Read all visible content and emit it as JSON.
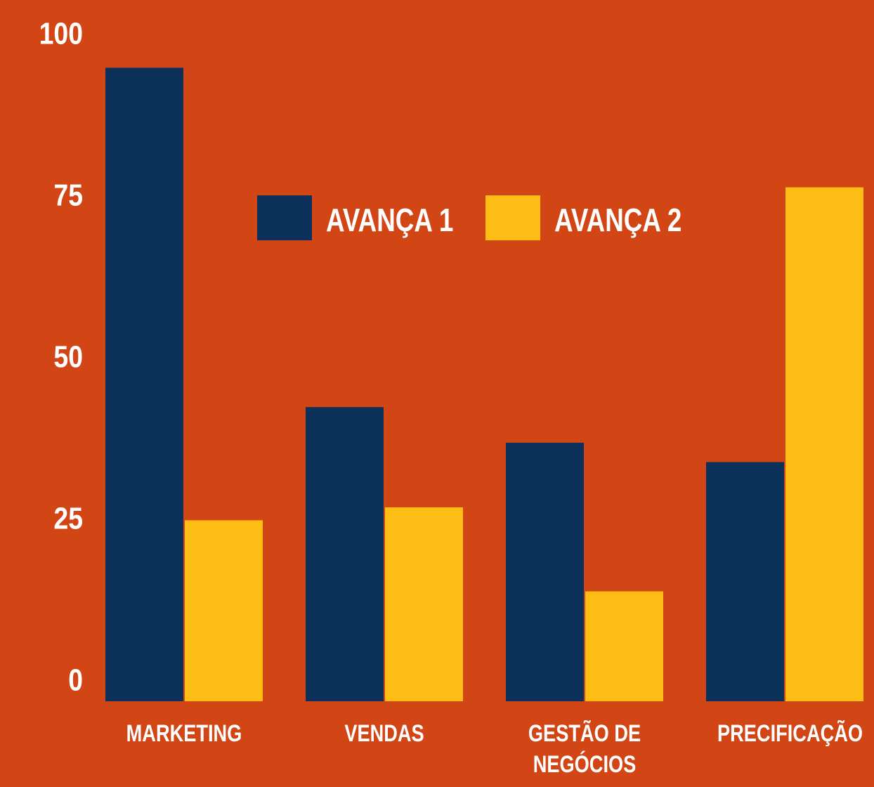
{
  "chart_data": {
    "type": "bar",
    "categories": [
      "MARKETING",
      "VENDAS",
      "GESTÃO DE NEGÓCIOS",
      "PRECIFICAÇÃO"
    ],
    "series": [
      {
        "name": "AVANÇA 1",
        "color": "#0b315b",
        "values": [
          98,
          45.5,
          40,
          37
        ]
      },
      {
        "name": "AVANÇA 2",
        "color": "#fdbd15",
        "values": [
          28,
          30,
          17,
          79.5
        ]
      }
    ],
    "ylim": [
      0,
      100
    ],
    "yticks": [
      0,
      25,
      50,
      75,
      100
    ],
    "background": "#d24616"
  }
}
